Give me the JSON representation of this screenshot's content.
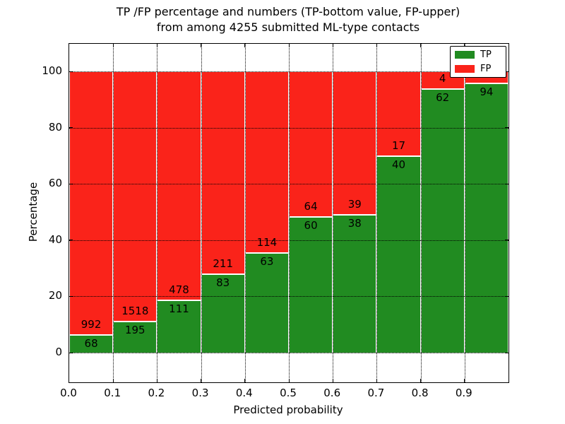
{
  "title": {
    "line1": "TP /FP percentage and numbers (TP-bottom value, FP-upper)",
    "line2": "from among 4255 submitted ML-type contacts"
  },
  "axes": {
    "xlabel": "Predicted probability",
    "ylabel": "Percentage",
    "x_tick_labels": [
      "0.0",
      "0.1",
      "0.2",
      "0.3",
      "0.4",
      "0.5",
      "0.6",
      "0.7",
      "0.8",
      "0.9"
    ],
    "y_tick_labels": [
      "0",
      "20",
      "40",
      "60",
      "80",
      "100"
    ],
    "y_tick_values": [
      0,
      20,
      40,
      60,
      80,
      100
    ]
  },
  "legend": {
    "position": "upper-right",
    "items": [
      {
        "label": "TP",
        "color": "#218b21"
      },
      {
        "label": "FP",
        "color": "#fa231a"
      }
    ]
  },
  "chart_data": {
    "type": "bar",
    "subtype": "stacked-100-percent-histogram",
    "title": "TP /FP percentage and numbers (TP-bottom value, FP-upper) from among 4255 submitted ML-type contacts",
    "xlabel": "Predicted probability",
    "ylabel": "Percentage",
    "total_contacts": 4255,
    "xlim": [
      0.0,
      1.0
    ],
    "ylim": [
      -10.5,
      110
    ],
    "bin_width": 0.1,
    "grid": {
      "enabled": true,
      "style": "dotted",
      "color": "#000000"
    },
    "legend_position": "upper right",
    "colors": {
      "tp": "#218b21",
      "fp": "#fa231a",
      "bar_edge": "#ffffff"
    },
    "bins": [
      {
        "x_start": 0.0,
        "x_end": 0.1,
        "tp": 68,
        "fp": 992,
        "fp_label_visible": true
      },
      {
        "x_start": 0.1,
        "x_end": 0.2,
        "tp": 195,
        "fp": 1518,
        "fp_label_visible": true
      },
      {
        "x_start": 0.2,
        "x_end": 0.3,
        "tp": 111,
        "fp": 478,
        "fp_label_visible": true
      },
      {
        "x_start": 0.3,
        "x_end": 0.4,
        "tp": 83,
        "fp": 211,
        "fp_label_visible": true
      },
      {
        "x_start": 0.4,
        "x_end": 0.5,
        "tp": 63,
        "fp": 114,
        "fp_label_visible": true
      },
      {
        "x_start": 0.5,
        "x_end": 0.6,
        "tp": 60,
        "fp": 64,
        "fp_label_visible": true
      },
      {
        "x_start": 0.6,
        "x_end": 0.7,
        "tp": 38,
        "fp": 39,
        "fp_label_visible": true
      },
      {
        "x_start": 0.7,
        "x_end": 0.8,
        "tp": 40,
        "fp": 17,
        "fp_label_visible": true
      },
      {
        "x_start": 0.8,
        "x_end": 0.9,
        "tp": 62,
        "fp": 4,
        "fp_label_visible": true
      },
      {
        "x_start": 0.9,
        "x_end": 1.0,
        "tp": 94,
        "fp": 4,
        "fp_label_visible": false,
        "note": "FP label hidden behind legend"
      }
    ]
  }
}
